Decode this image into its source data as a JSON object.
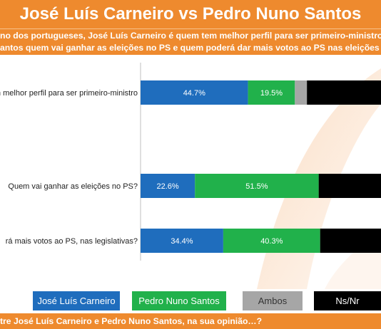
{
  "header": {
    "title": "José Luís Carneiro vs Pedro Nuno Santos",
    "subtitle_line1": "no dos portugueses, José Luís Carneiro é quem tem melhor perfil para ser primeiro-ministro, mas",
    "subtitle_line2": "antos quem vai ganhar as eleições no PS e quem poderá dar mais votos ao PS nas eleições legisla"
  },
  "footer": {
    "text": "tre José Luís Carneiro e Pedro Nuno Santos, na sua opinião…?"
  },
  "colors": {
    "brand_orange": "#ee8a2e",
    "carneiro": "#1f6dbd",
    "santos": "#21b14b",
    "ambos": "#a6a6a6",
    "nsnr": "#000000"
  },
  "chart_data": {
    "type": "bar",
    "orientation": "horizontal",
    "stacked": true,
    "xlim": [
      0,
      100
    ],
    "categories": [
      "m melhor perfil para ser primeiro-ministro",
      "Quem vai ganhar as eleições no PS?",
      "rá mais votos ao PS, nas legislativas?"
    ],
    "series": [
      {
        "name": "José Luís Carneiro",
        "color": "#1f6dbd",
        "values": [
          44.7,
          22.6,
          34.4
        ],
        "labels": [
          "44.7%",
          "22.6%",
          "34.4%"
        ]
      },
      {
        "name": "Pedro Nuno Santos",
        "color": "#21b14b",
        "values": [
          19.5,
          51.5,
          40.3
        ],
        "labels": [
          "19.5%",
          "51.5%",
          "40.3%"
        ]
      },
      {
        "name": "Ambos",
        "color": "#a6a6a6",
        "values": [
          5.0,
          0,
          0
        ]
      },
      {
        "name": "Ns/Nr",
        "color": "#000000",
        "values": [
          30.8,
          25.9,
          25.3
        ]
      }
    ],
    "legend": {
      "position": "bottom",
      "items": [
        "José Luís Carneiro",
        "Pedro Nuno Santos",
        "Ambos",
        "Ns/Nr"
      ]
    },
    "grid": false
  }
}
